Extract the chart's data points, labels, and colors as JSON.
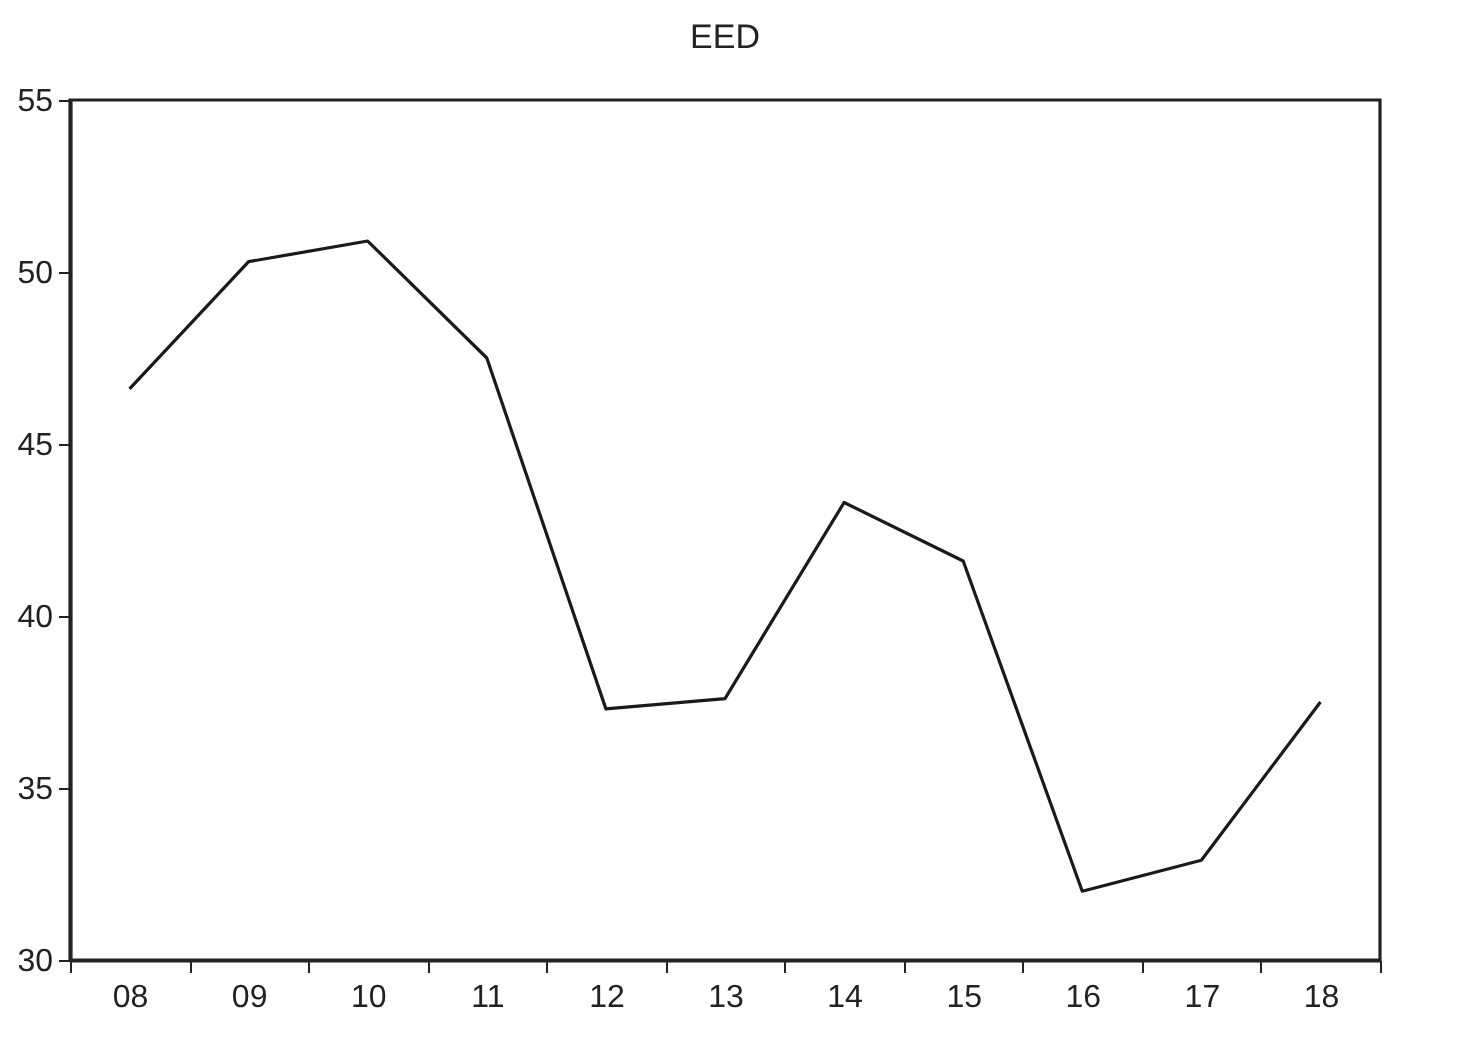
{
  "chart_data": {
    "type": "line",
    "title": "EED",
    "categories": [
      "08",
      "09",
      "10",
      "11",
      "12",
      "13",
      "14",
      "15",
      "16",
      "17",
      "18"
    ],
    "series": [
      {
        "color": "#1a1a1a",
        "values": [
          46.6,
          50.3,
          50.9,
          47.5,
          37.3,
          37.6,
          43.3,
          41.6,
          32.0,
          32.9,
          37.5
        ]
      }
    ],
    "ylim": [
      30,
      55
    ],
    "yticks": [
      30,
      35,
      40,
      45,
      50,
      55
    ],
    "grid": false,
    "legend": false,
    "marker": "none",
    "line_style": "solid"
  }
}
